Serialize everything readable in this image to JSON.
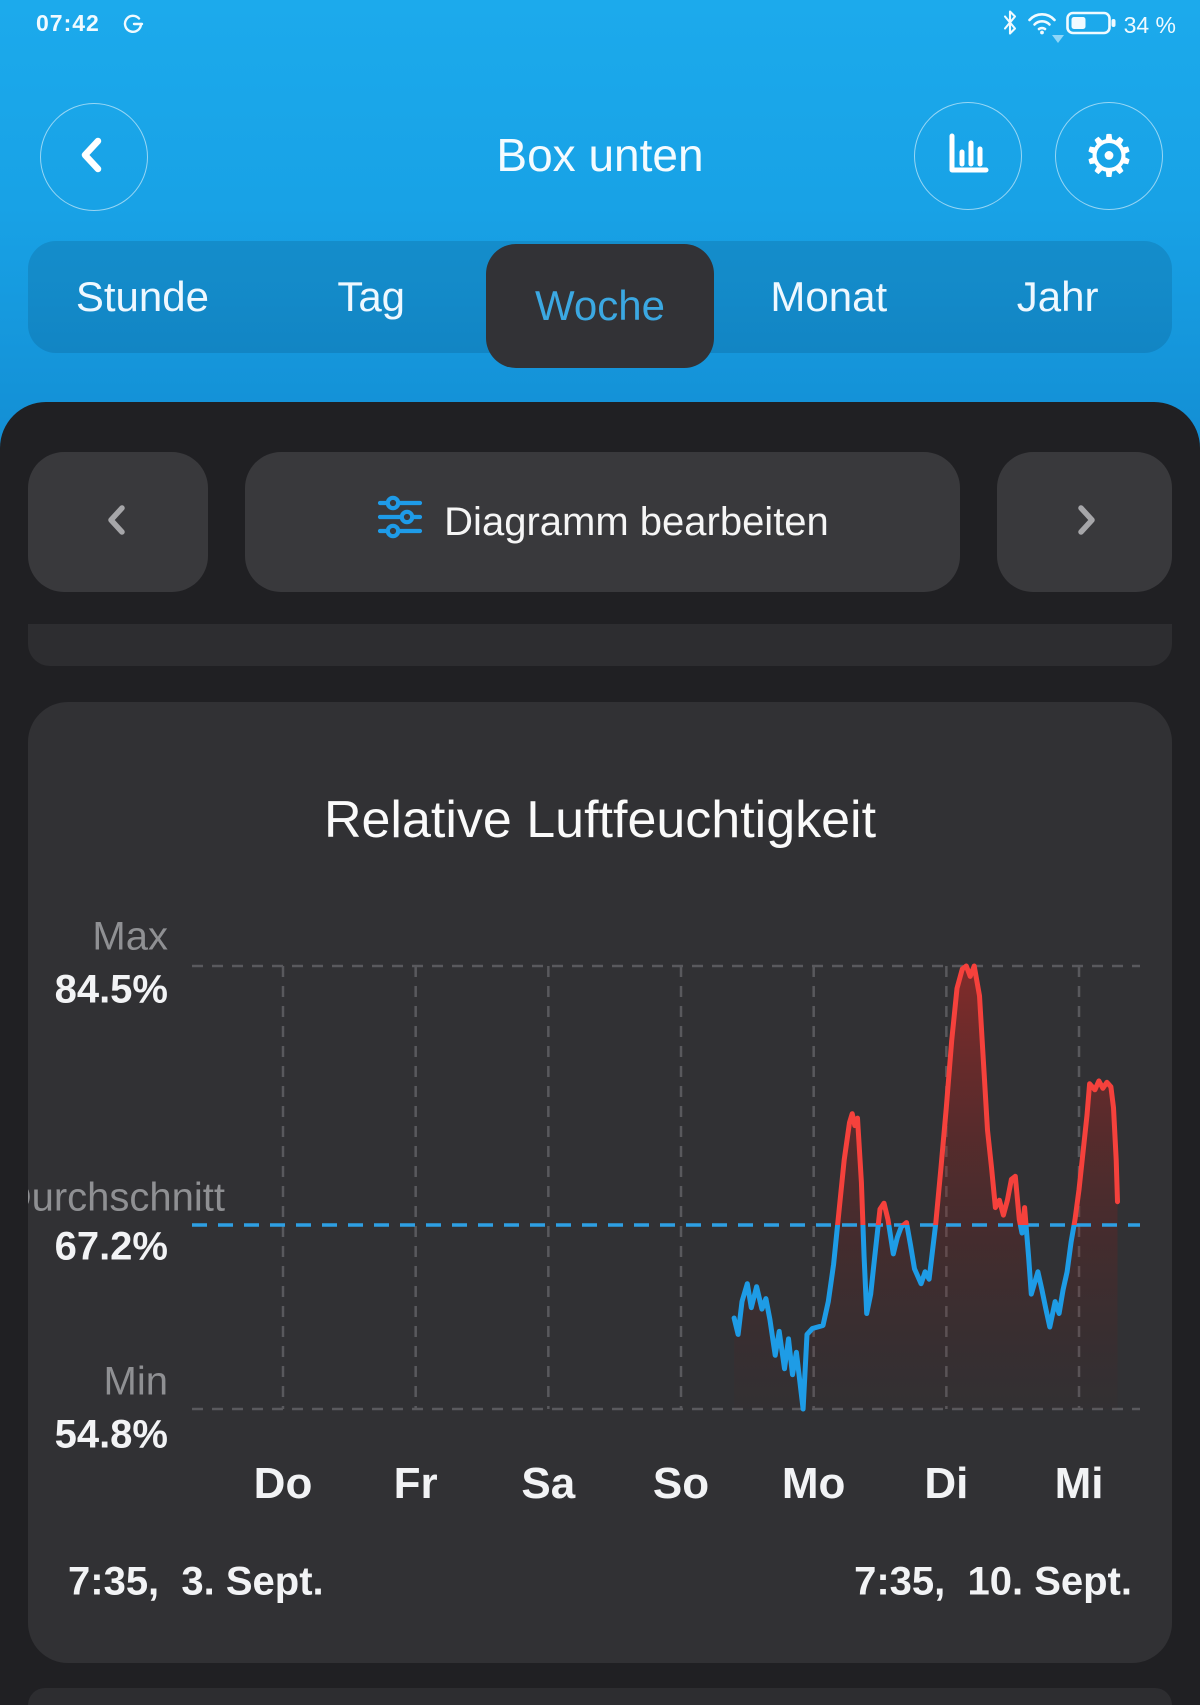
{
  "status_bar": {
    "time": "07:42",
    "battery_percent": "34 %",
    "icons": [
      "sync-icon",
      "bluetooth-icon",
      "wifi-icon",
      "battery-icon"
    ]
  },
  "header": {
    "title": "Box unten",
    "icons": [
      "back-icon",
      "bar-chart-icon",
      "gear-icon"
    ]
  },
  "tabs": {
    "items": [
      "Stunde",
      "Tag",
      "Woche",
      "Monat",
      "Jahr"
    ],
    "selected": "Woche"
  },
  "chart_nav": {
    "edit_label": "Diagramm bearbeiten",
    "edit_icon": "sliders-icon",
    "prev_icon": "chevron-left-icon",
    "next_icon": "chevron-right-icon"
  },
  "chart_data": {
    "type": "line",
    "title": "Relative Luftfeuchtigkeit",
    "unit": "%",
    "y_axis": {
      "max": {
        "label": "Max",
        "value": "84.5%"
      },
      "average": {
        "label": "Durchschnitt",
        "value": "67.2%"
      },
      "min": {
        "label": "Min",
        "value": "54.8%"
      }
    },
    "value_range": {
      "min": 54.8,
      "max": 84.5,
      "average": 67.2
    },
    "categories": [
      "Do",
      "Fr",
      "Sa",
      "So",
      "Mo",
      "Di",
      "Mi"
    ],
    "x_range": {
      "start": "7:35,  3. Sept.",
      "end": "7:35,  10. Sept."
    },
    "grid": {
      "vertical_dashed": true,
      "horizontal_dashed_at": [
        "max",
        "min"
      ],
      "average_dashed_line": true
    },
    "colors": {
      "above_average": "#f5413c",
      "below_average": "#1e9ce6",
      "average_line": "#2e9fe3",
      "fill_top": "rgba(196,38,34,0.55)",
      "fill_bottom": "rgba(90,24,22,0.04)"
    },
    "series": [
      {
        "name": "Relative Luftfeuchtigkeit",
        "x_unit": "days_from_Do",
        "points": [
          [
            3.4,
            60.9
          ],
          [
            3.43,
            59.8
          ],
          [
            3.46,
            62.0
          ],
          [
            3.5,
            63.2
          ],
          [
            3.53,
            61.6
          ],
          [
            3.57,
            63.0
          ],
          [
            3.61,
            61.5
          ],
          [
            3.64,
            62.2
          ],
          [
            3.67,
            60.8
          ],
          [
            3.71,
            58.4
          ],
          [
            3.74,
            60.0
          ],
          [
            3.78,
            57.5
          ],
          [
            3.81,
            59.5
          ],
          [
            3.84,
            57.1
          ],
          [
            3.87,
            58.6
          ],
          [
            3.92,
            54.8
          ],
          [
            3.95,
            59.8
          ],
          [
            3.99,
            60.2
          ],
          [
            4.03,
            60.3
          ],
          [
            4.07,
            60.4
          ],
          [
            4.11,
            62.0
          ],
          [
            4.15,
            64.5
          ],
          [
            4.19,
            68.0
          ],
          [
            4.23,
            71.5
          ],
          [
            4.27,
            74.0
          ],
          [
            4.29,
            74.6
          ],
          [
            4.31,
            73.8
          ],
          [
            4.33,
            74.3
          ],
          [
            4.36,
            70.0
          ],
          [
            4.38,
            65.0
          ],
          [
            4.4,
            61.2
          ],
          [
            4.43,
            62.5
          ],
          [
            4.46,
            65.0
          ],
          [
            4.5,
            68.2
          ],
          [
            4.53,
            68.6
          ],
          [
            4.56,
            67.5
          ],
          [
            4.6,
            65.2
          ],
          [
            4.63,
            66.3
          ],
          [
            4.66,
            67.0
          ],
          [
            4.7,
            67.3
          ],
          [
            4.73,
            65.8
          ],
          [
            4.76,
            64.2
          ],
          [
            4.81,
            63.2
          ],
          [
            4.84,
            64.0
          ],
          [
            4.87,
            63.5
          ],
          [
            4.92,
            67.2
          ],
          [
            4.96,
            71.0
          ],
          [
            5.0,
            75.0
          ],
          [
            5.04,
            79.5
          ],
          [
            5.08,
            83.0
          ],
          [
            5.12,
            84.3
          ],
          [
            5.15,
            84.5
          ],
          [
            5.18,
            83.8
          ],
          [
            5.21,
            84.5
          ],
          [
            5.25,
            82.5
          ],
          [
            5.28,
            78.0
          ],
          [
            5.31,
            73.5
          ],
          [
            5.34,
            71.0
          ],
          [
            5.37,
            68.3
          ],
          [
            5.4,
            68.8
          ],
          [
            5.43,
            67.8
          ],
          [
            5.46,
            68.8
          ],
          [
            5.49,
            70.2
          ],
          [
            5.52,
            70.4
          ],
          [
            5.55,
            67.5
          ],
          [
            5.57,
            66.6
          ],
          [
            5.59,
            68.3
          ],
          [
            5.62,
            65.0
          ],
          [
            5.64,
            62.5
          ],
          [
            5.69,
            64.0
          ],
          [
            5.72,
            62.8
          ],
          [
            5.75,
            61.5
          ],
          [
            5.78,
            60.3
          ],
          [
            5.82,
            62.0
          ],
          [
            5.85,
            61.2
          ],
          [
            5.88,
            62.8
          ],
          [
            5.91,
            64.0
          ],
          [
            5.94,
            66.0
          ],
          [
            5.97,
            67.5
          ],
          [
            6.0,
            69.5
          ],
          [
            6.03,
            72.0
          ],
          [
            6.06,
            74.5
          ],
          [
            6.08,
            76.6
          ],
          [
            6.12,
            76.2
          ],
          [
            6.15,
            76.8
          ],
          [
            6.18,
            76.3
          ],
          [
            6.21,
            76.7
          ],
          [
            6.24,
            76.4
          ],
          [
            6.26,
            75.0
          ],
          [
            6.28,
            71.5
          ],
          [
            6.29,
            68.7
          ]
        ]
      }
    ]
  }
}
